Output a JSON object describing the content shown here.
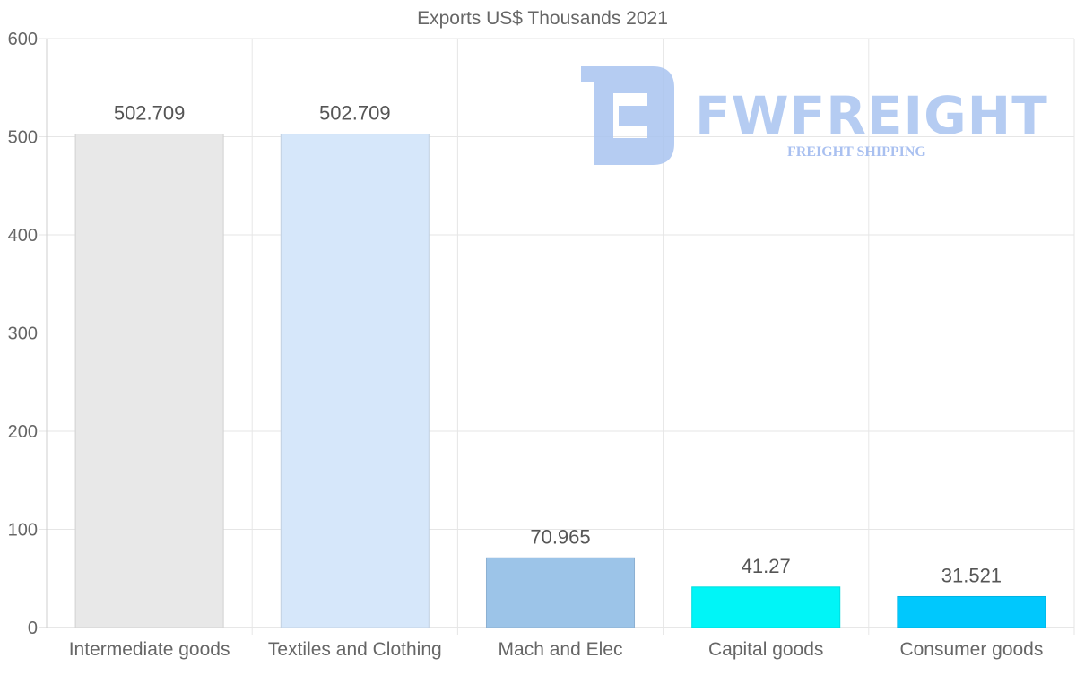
{
  "chart_data": {
    "type": "bar",
    "title": "Exports US$ Thousands 2021",
    "categories": [
      "Intermediate goods",
      "Textiles and Clothing",
      "Mach and Elec",
      "Capital goods",
      "Consumer goods"
    ],
    "values": [
      502.709,
      502.709,
      70.965,
      41.27,
      31.521
    ],
    "value_labels": [
      "502.709",
      "502.709",
      "70.965",
      "41.27",
      "31.521"
    ],
    "colors": [
      "#e8e8e8",
      "#d6e7fa",
      "#9cc4e8",
      "#00f5f7",
      "#00c8fd"
    ],
    "ylim": [
      0,
      600
    ],
    "yticks": [
      0,
      100,
      200,
      300,
      400,
      500,
      600
    ],
    "ytick_labels": [
      "0",
      "100",
      "200",
      "300",
      "400",
      "500",
      "600"
    ],
    "xlabel": "",
    "ylabel": "",
    "grid": true
  },
  "watermark": {
    "brand": "FWFREIGHT",
    "tagline": "FREIGHT SHIPPING",
    "color": "#a9c4f0"
  }
}
